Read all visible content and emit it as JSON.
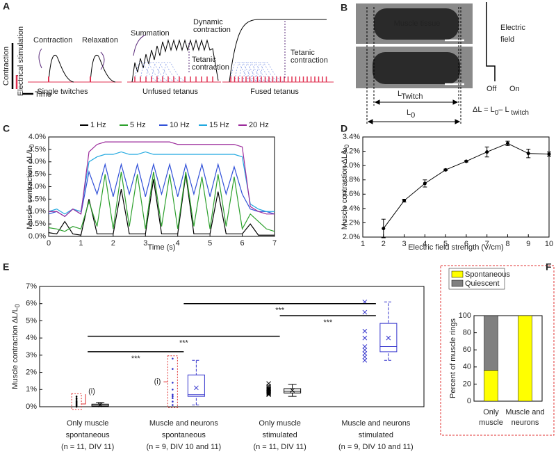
{
  "schematic_a": {
    "panel": "A",
    "twitch_labels": [
      [
        "Contraction"
      ],
      [
        "Relaxation"
      ],
      [
        "Summation"
      ],
      [
        "Dynamic",
        "contraction"
      ],
      [
        "Tetanic",
        "contraction"
      ],
      [
        "Tetanic",
        "contraction"
      ]
    ],
    "captions": [
      "Single twitches",
      "Unfused tetanus",
      "Fused tetanus"
    ],
    "axis_key": [
      "Contraction",
      "Electrical stimulation",
      "Time"
    ]
  },
  "schematic_b": {
    "panel": "B",
    "tissue_label": "Muscle tissue",
    "field_label": [
      "Electric",
      "field"
    ],
    "off": "Off",
    "on": "On",
    "l_twitch": [
      "L",
      "Twitch"
    ],
    "l0": [
      "L",
      "0"
    ],
    "formula": [
      "ΔL = L",
      "0",
      "– L",
      " twitch"
    ]
  },
  "chart_data": [
    {
      "type": "line",
      "panel": "C",
      "xlabel": "Time (s)",
      "ylabel": "Muscle contraction ΔL/L",
      "ylabel_sub": "0",
      "x": [
        0,
        0.25,
        0.5,
        0.75,
        1,
        1.25,
        1.5,
        1.75,
        2,
        2.25,
        2.5,
        2.75,
        3,
        3.25,
        3.5,
        3.75,
        4,
        4.25,
        4.5,
        4.75,
        5,
        5.25,
        5.5,
        5.75,
        6,
        6.25,
        6.5,
        6.75,
        7
      ],
      "series": [
        {
          "name": "1 Hz",
          "color": "#000000",
          "values": [
            0.15,
            0.1,
            0.6,
            0.1,
            0.05,
            1.5,
            0.1,
            0.1,
            0.1,
            1.9,
            0.1,
            0.1,
            0.1,
            2.3,
            0.1,
            0.1,
            0.1,
            2.5,
            0.1,
            0.1,
            0.1,
            1.8,
            0.1,
            0.1,
            0.1,
            0.5,
            0.05,
            0.05,
            0.05
          ]
        },
        {
          "name": "5 Hz",
          "color": "#2ca02c",
          "values": [
            0.35,
            0.3,
            0.2,
            0.4,
            0.3,
            1.4,
            0.4,
            2.5,
            0.3,
            2.6,
            0.4,
            2.5,
            0.3,
            2.6,
            0.4,
            2.5,
            0.3,
            2.6,
            0.4,
            2.4,
            0.3,
            2.5,
            0.4,
            2.4,
            0.3,
            0.9,
            0.6,
            0.3,
            0.2
          ]
        },
        {
          "name": "10 Hz",
          "color": "#3050d8",
          "values": [
            0.9,
            1.0,
            0.8,
            1.1,
            0.9,
            2.6,
            1.7,
            2.9,
            1.6,
            2.9,
            1.7,
            2.9,
            1.6,
            2.9,
            1.7,
            2.9,
            1.6,
            2.9,
            1.7,
            2.9,
            1.6,
            2.9,
            1.7,
            2.8,
            1.7,
            1.1,
            1.0,
            1.0,
            0.9
          ]
        },
        {
          "name": "15 Hz",
          "color": "#1fa8e0",
          "values": [
            1.0,
            1.1,
            0.9,
            1.1,
            1.0,
            3.0,
            3.2,
            3.3,
            3.3,
            3.4,
            3.3,
            3.3,
            3.4,
            3.3,
            3.3,
            3.3,
            3.3,
            3.3,
            3.3,
            3.3,
            3.3,
            3.3,
            3.3,
            3.3,
            3.2,
            1.3,
            1.1,
            1.0,
            1.0
          ]
        },
        {
          "name": "20 Hz",
          "color": "#9b2a9b",
          "values": [
            1.0,
            1.0,
            0.8,
            1.1,
            0.9,
            3.4,
            3.7,
            3.8,
            3.8,
            3.8,
            3.8,
            3.8,
            3.8,
            3.8,
            3.8,
            3.8,
            3.7,
            3.7,
            3.7,
            3.7,
            3.7,
            3.7,
            3.7,
            3.7,
            3.6,
            1.2,
            1.0,
            0.9,
            0.9
          ]
        }
      ],
      "xlim": [
        0,
        7
      ],
      "xticks": [
        0,
        1,
        2,
        3,
        4,
        5,
        6,
        7
      ],
      "ylim": [
        0,
        4
      ],
      "yticks": [
        {
          "value": 0,
          "label": "0.0%"
        },
        {
          "value": 0.5,
          "label": "0.5%"
        },
        {
          "value": 1,
          "label": "1.0%"
        },
        {
          "value": 1.5,
          "label": "1.5%"
        },
        {
          "value": 2,
          "label": "2.0%"
        },
        {
          "value": 2.5,
          "label": "2.5%"
        },
        {
          "value": 3,
          "label": "3.0%"
        },
        {
          "value": 3.5,
          "label": "3.5%"
        },
        {
          "value": 4,
          "label": "4.0%"
        }
      ]
    },
    {
      "type": "errorbar",
      "panel": "D",
      "xlabel": "Electric field strength (V/cm)",
      "ylabel": "Muscle contraction ΔL/L",
      "ylabel_sub": "0",
      "color": "#000000",
      "x": [
        2,
        3,
        4,
        5,
        6,
        7,
        8,
        9,
        10
      ],
      "values": [
        2.12,
        2.51,
        2.75,
        2.94,
        3.06,
        3.19,
        3.31,
        3.17,
        3.16
      ],
      "errors": [
        0.13,
        0.02,
        0.05,
        0.01,
        0.01,
        0.07,
        0.03,
        0.06,
        0.03
      ],
      "xlim": [
        1,
        10
      ],
      "xticks": [
        1,
        2,
        3,
        4,
        5,
        6,
        7,
        8,
        9,
        10
      ],
      "ylim": [
        2,
        3.4
      ],
      "yticks": [
        {
          "value": 2,
          "label": "2.0%"
        },
        {
          "value": 2.2,
          "label": "2.2%"
        },
        {
          "value": 2.4,
          "label": "2.4%"
        },
        {
          "value": 2.6,
          "label": "2.6%"
        },
        {
          "value": 2.8,
          "label": "2.8%"
        },
        {
          "value": 3,
          "label": "3.0%"
        },
        {
          "value": 3.2,
          "label": "3.2%"
        },
        {
          "value": 3.4,
          "label": "3.4%"
        }
      ]
    },
    {
      "type": "box",
      "panel": "E",
      "ylabel": "Muscle contraction ΔL/L",
      "ylabel_sub": "0",
      "ylim": [
        0,
        7
      ],
      "yticks": [
        {
          "value": 0,
          "label": "0%"
        },
        {
          "value": 1,
          "label": "1%"
        },
        {
          "value": 2,
          "label": "2%"
        },
        {
          "value": 3,
          "label": "3%"
        },
        {
          "value": 4,
          "label": "4%"
        },
        {
          "value": 5,
          "label": "5%"
        },
        {
          "value": 6,
          "label": "6%"
        },
        {
          "value": 7,
          "label": "7%"
        }
      ],
      "groups": [
        {
          "label": [
            "Only muscle",
            "spontaneous"
          ],
          "n": "(n = 11, DIV 11)",
          "color": "#000000",
          "marker": "dot",
          "points": [
            0.0,
            0.05,
            0.1,
            0.15,
            0.2,
            0.25,
            0.3,
            0.35,
            0.45,
            0.5,
            0.6
          ],
          "whisker_low": 0,
          "q1": 0.02,
          "median": 0.08,
          "q3": 0.15,
          "whisker_high": 0.25,
          "mean": 0.1
        },
        {
          "label": [
            "Muscle and neurons",
            "spontaneous"
          ],
          "n": "(n = 9, DIV 10 and 11)",
          "color": "#3333cc",
          "marker": "dot",
          "points": [
            0.1,
            0.3,
            0.5,
            0.6,
            0.7,
            1.0,
            1.4,
            2.2,
            2.8
          ],
          "whisker_low": 0.1,
          "q1": 0.6,
          "median": 0.7,
          "q3": 1.85,
          "whisker_high": 2.7,
          "mean": 1.1
        },
        {
          "label": [
            "Only muscle",
            "stimulated"
          ],
          "n": "(n = 11, DIV 11)",
          "color": "#000000",
          "marker": "cross",
          "points": [
            0.7,
            0.75,
            0.8,
            0.85,
            0.9,
            0.95,
            1.0,
            1.05,
            1.1,
            1.2,
            1.35
          ],
          "whisker_low": 0.6,
          "q1": 0.8,
          "median": 0.9,
          "q3": 1.05,
          "whisker_high": 1.3,
          "mean": 0.95
        },
        {
          "label": [
            "Muscle and neurons",
            "stimulated"
          ],
          "n": "(n = 9, DIV 10 and 11)",
          "color": "#3333cc",
          "marker": "cross",
          "points": [
            2.7,
            2.9,
            3.1,
            3.3,
            3.5,
            4.0,
            4.4,
            5.5,
            6.1
          ],
          "whisker_low": 2.7,
          "q1": 3.2,
          "median": 3.5,
          "q3": 4.85,
          "whisker_high": 6.1,
          "mean": 4.0
        }
      ],
      "significance": [
        {
          "from": 0,
          "to": 1,
          "y": 3.2,
          "label": "***"
        },
        {
          "from": 0,
          "to": 2,
          "y": 4.1,
          "label": "***"
        },
        {
          "from": 2,
          "to": 3,
          "y": 5.3,
          "label": "***"
        },
        {
          "from": 1,
          "to": 3,
          "y": 6.0,
          "label": "***"
        }
      ],
      "annotations": [
        "(i)",
        "(i)"
      ]
    },
    {
      "type": "stacked_bar",
      "panel": "F",
      "ylabel": "Percent of muscle rings",
      "categories": [
        [
          "Only",
          "muscle"
        ],
        [
          "Muscle and",
          "neurons"
        ]
      ],
      "series": [
        {
          "name": "Spontaneous",
          "color": "#ffff00",
          "values": [
            36,
            100
          ]
        },
        {
          "name": "Quiescent",
          "color": "#808080",
          "values": [
            64,
            0
          ]
        }
      ],
      "ylim": [
        0,
        100
      ],
      "yticks": [
        0,
        20,
        40,
        60,
        80,
        100
      ]
    }
  ]
}
